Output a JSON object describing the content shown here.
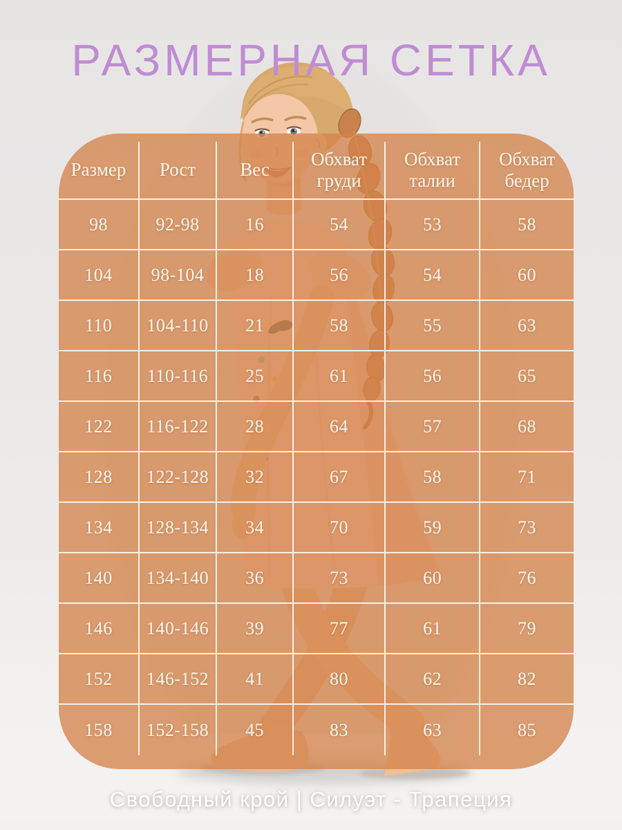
{
  "title": "РАЗМЕРНАЯ СЕТКА",
  "footer": "Свободный крой | Силуэт - Трапеция",
  "colors": {
    "title": "#bf8cd3",
    "panel": "rgba(211,132,75,0.78)",
    "grid_line": "rgba(253,247,238,0.92)",
    "table_text": "#fdf5eb"
  },
  "chart_data": {
    "type": "table",
    "title": "РАЗМЕРНАЯ СЕТКА",
    "caption": "Свободный крой | Силуэт - Трапеция",
    "columns": [
      "Размер",
      "Рост",
      "Вес",
      "Обхват груди",
      "Обхват талии",
      "Обхват бедер"
    ],
    "rows": [
      [
        "98",
        "92-98",
        "16",
        "54",
        "53",
        "58"
      ],
      [
        "104",
        "98-104",
        "18",
        "56",
        "54",
        "60"
      ],
      [
        "110",
        "104-110",
        "21",
        "58",
        "55",
        "63"
      ],
      [
        "116",
        "110-116",
        "25",
        "61",
        "56",
        "65"
      ],
      [
        "122",
        "116-122",
        "28",
        "64",
        "57",
        "68"
      ],
      [
        "128",
        "122-128",
        "32",
        "67",
        "58",
        "71"
      ],
      [
        "134",
        "128-134",
        "34",
        "70",
        "59",
        "73"
      ],
      [
        "140",
        "134-140",
        "36",
        "73",
        "60",
        "76"
      ],
      [
        "146",
        "140-146",
        "39",
        "77",
        "61",
        "79"
      ],
      [
        "152",
        "146-152",
        "41",
        "80",
        "62",
        "82"
      ],
      [
        "158",
        "152-158",
        "45",
        "83",
        "63",
        "85"
      ]
    ]
  }
}
